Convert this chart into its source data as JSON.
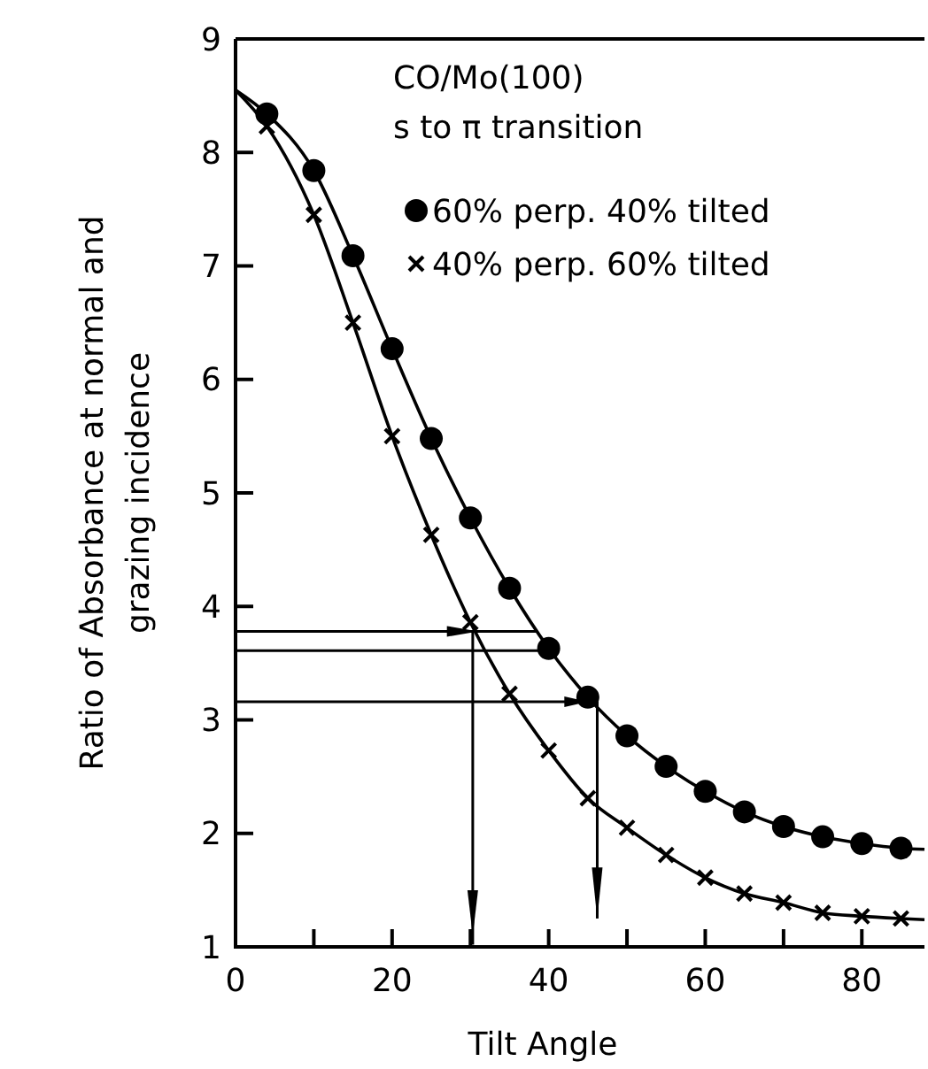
{
  "chart_data": {
    "type": "scatter",
    "xlabel": "Tilt Angle",
    "ylabel": "Ratio of  Absorbance  at  normal  and\ngrazing  incidence",
    "annotations": [
      "CO/Mo(100)",
      "s  to π  transition"
    ],
    "xlim": [
      0,
      88
    ],
    "ylim": [
      1,
      9
    ],
    "xticks": [
      0,
      {
        "value": 10,
        "label": null
      },
      20,
      {
        "value": 30,
        "label": null
      },
      40,
      {
        "value": 50,
        "label": null
      },
      60,
      {
        "value": 70,
        "label": null
      },
      80
    ],
    "yticks": [
      1,
      2,
      3,
      4,
      5,
      6,
      7,
      8,
      9
    ],
    "legend": "top right",
    "grid": false,
    "series": [
      {
        "name": "60% perp. 40% tilted",
        "color": "#000000",
        "marker": "circle",
        "x": [
          4,
          10,
          15,
          20,
          25,
          30,
          35,
          40,
          45,
          50,
          55,
          60,
          65,
          70,
          75,
          80,
          85
        ],
        "values": [
          8.34,
          7.84,
          7.09,
          6.27,
          5.48,
          4.78,
          4.16,
          3.63,
          3.2,
          2.86,
          2.59,
          2.37,
          2.19,
          2.06,
          1.97,
          1.91,
          1.87
        ]
      },
      {
        "name": "40% perp. 60% tilted",
        "color": "#000000",
        "marker": "cross",
        "x": [
          4,
          10,
          15,
          20,
          25,
          30,
          35,
          40,
          45,
          50,
          55,
          60,
          65,
          70,
          75,
          80,
          85
        ],
        "values": [
          8.23,
          7.45,
          6.5,
          5.5,
          4.63,
          3.86,
          3.23,
          2.73,
          2.31,
          2.05,
          1.81,
          1.61,
          1.47,
          1.39,
          1.3,
          1.27,
          1.25
        ]
      },
      {
        "type": "line",
        "color": "#000000",
        "marker": "none",
        "x": [
          0,
          4,
          10,
          15,
          20,
          25,
          30,
          35,
          40,
          45,
          50,
          55,
          60,
          65,
          70,
          75,
          80,
          85,
          88
        ],
        "values": [
          8.55,
          8.34,
          7.84,
          7.09,
          6.27,
          5.48,
          4.78,
          4.16,
          3.63,
          3.2,
          2.86,
          2.59,
          2.37,
          2.19,
          2.06,
          1.97,
          1.91,
          1.87,
          1.86
        ]
      },
      {
        "type": "line",
        "color": "#000000",
        "marker": "none",
        "x": [
          0,
          4,
          10,
          15,
          20,
          25,
          30,
          35,
          40,
          45,
          50,
          55,
          60,
          65,
          70,
          75,
          80,
          85,
          88
        ],
        "values": [
          8.55,
          8.23,
          7.45,
          6.5,
          5.5,
          4.63,
          3.86,
          3.23,
          2.73,
          2.31,
          2.05,
          1.81,
          1.61,
          1.47,
          1.39,
          1.3,
          1.27,
          1.25,
          1.24
        ]
      }
    ]
  }
}
